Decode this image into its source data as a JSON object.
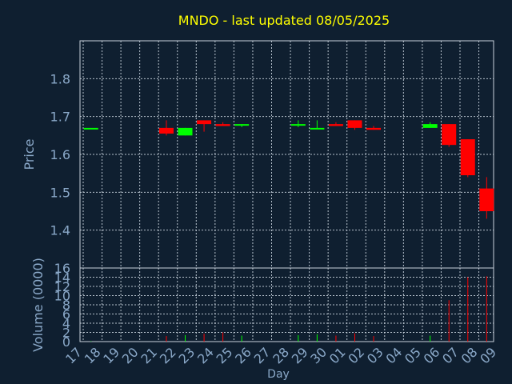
{
  "chart_data": {
    "type": "candlestick",
    "title": "MNDO - last updated 08/05/2025",
    "xlabel": "Day",
    "x_ticks": [
      "17",
      "18",
      "19",
      "20",
      "21",
      "22",
      "23",
      "24",
      "25",
      "26",
      "27",
      "28",
      "29",
      "30",
      "01",
      "02",
      "03",
      "04",
      "05",
      "06",
      "07",
      "08",
      "09"
    ],
    "price_panel": {
      "ylabel": "Price",
      "ylim": [
        1.3,
        1.9
      ],
      "y_ticks": [
        "1.4",
        "1.5",
        "1.6",
        "1.7",
        "1.8"
      ],
      "y_tick_values": [
        1.4,
        1.5,
        1.6,
        1.7,
        1.8
      ],
      "grid": true
    },
    "volume_panel": {
      "ylabel": "Volume (0000)",
      "ylim": [
        0,
        16
      ],
      "y_ticks": [
        "0",
        "2",
        "4",
        "6",
        "8",
        "10",
        "12",
        "14",
        "16"
      ],
      "y_tick_values": [
        0,
        2,
        4,
        6,
        8,
        10,
        12,
        14,
        16
      ],
      "grid": true
    },
    "colors": {
      "background": "#0f1f30",
      "title": "#ffff00",
      "axis_text": "#8aa8c8",
      "up": "#00ff00",
      "down": "#ff0000",
      "grid": "#c8d2dc"
    },
    "candles": [
      {
        "day": "17",
        "open": 1.67,
        "high": 1.67,
        "low": 1.67,
        "close": 1.67,
        "volume": 0.1
      },
      {
        "day": "21",
        "open": 1.67,
        "high": 1.69,
        "low": 1.65,
        "close": 1.655,
        "volume": 1.2
      },
      {
        "day": "22",
        "open": 1.65,
        "high": 1.67,
        "low": 1.65,
        "close": 1.67,
        "volume": 1.4
      },
      {
        "day": "23",
        "open": 1.69,
        "high": 1.69,
        "low": 1.66,
        "close": 1.68,
        "volume": 1.7
      },
      {
        "day": "24",
        "open": 1.68,
        "high": 1.685,
        "low": 1.675,
        "close": 1.675,
        "volume": 2.0
      },
      {
        "day": "25",
        "open": 1.678,
        "high": 1.68,
        "low": 1.672,
        "close": 1.68,
        "volume": 1.3
      },
      {
        "day": "28",
        "open": 1.678,
        "high": 1.69,
        "low": 1.672,
        "close": 1.68,
        "volume": 1.4
      },
      {
        "day": "29",
        "open": 1.668,
        "high": 1.69,
        "low": 1.668,
        "close": 1.67,
        "volume": 1.6
      },
      {
        "day": "30",
        "open": 1.68,
        "high": 1.685,
        "low": 1.675,
        "close": 1.675,
        "volume": 1.3
      },
      {
        "day": "01",
        "open": 1.69,
        "high": 1.69,
        "low": 1.665,
        "close": 1.67,
        "volume": 1.8
      },
      {
        "day": "02",
        "open": 1.67,
        "high": 1.675,
        "low": 1.665,
        "close": 1.665,
        "volume": 1.2
      },
      {
        "day": "05",
        "open": 1.67,
        "high": 1.685,
        "low": 1.67,
        "close": 1.68,
        "volume": 1.3
      },
      {
        "day": "06",
        "open": 1.68,
        "high": 1.68,
        "low": 1.62,
        "close": 1.625,
        "volume": 9.0
      },
      {
        "day": "07",
        "open": 1.64,
        "high": 1.64,
        "low": 1.54,
        "close": 1.545,
        "volume": 14.0
      },
      {
        "day": "08",
        "open": 1.51,
        "high": 1.54,
        "low": 1.43,
        "close": 1.45,
        "volume": 14.2
      }
    ]
  }
}
